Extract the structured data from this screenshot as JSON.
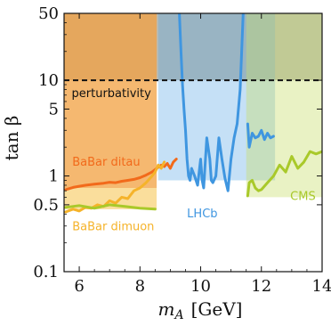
{
  "chart_data": {
    "type": "line",
    "xlabel_symbol": "m",
    "xlabel_sub": "A",
    "xlabel_unit": "[GeV]",
    "ylabel_text": "tan β",
    "xlim": [
      5.5,
      14
    ],
    "ylim": [
      0.1,
      50
    ],
    "y_scale": "log",
    "x_ticks": [
      6,
      8,
      10,
      12,
      14
    ],
    "x_tick_labels": [
      "6",
      "8",
      "10",
      "12",
      "14"
    ],
    "y_ticks": [
      0.1,
      0.5,
      1,
      5,
      10,
      50
    ],
    "y_tick_labels": [
      "0.1",
      "0.5",
      "1",
      "5",
      "10",
      "50"
    ],
    "grid": false,
    "perturbativity": {
      "y": 10,
      "label": "perturbativity",
      "color": "#111111"
    },
    "regions": [
      {
        "name": "perturbativity-region",
        "color": "#6b6b52",
        "opacity": 0.45,
        "x": [
          5.5,
          14
        ],
        "lower": [
          10,
          10
        ]
      },
      {
        "name": "babar-dimuon-region",
        "color": "#f5c24a",
        "opacity": 0.55,
        "x": [
          5.5,
          8.55
        ],
        "lower": [
          0.45,
          0.45
        ]
      },
      {
        "name": "babar-ditau-region",
        "color": "#f08a3c",
        "opacity": 0.45,
        "x": [
          5.5,
          8.55
        ],
        "lower": [
          0.75,
          0.75
        ]
      },
      {
        "name": "lhcb-region",
        "color": "#5aa6e6",
        "opacity": 0.35,
        "x": [
          8.6,
          12.45
        ],
        "lower": [
          0.9,
          0.9
        ]
      },
      {
        "name": "cms-region",
        "color": "#c8df6b",
        "opacity": 0.4,
        "x": [
          11.5,
          14
        ],
        "lower": [
          0.6,
          0.6
        ]
      }
    ],
    "series": [
      {
        "name": "BaBar ditau",
        "color": "#f26a1b",
        "label_pos": [
          5.8,
          1.3
        ],
        "x": [
          5.55,
          5.8,
          6.0,
          6.2,
          6.5,
          6.8,
          7.0,
          7.2,
          7.4,
          7.6,
          7.8,
          8.0,
          8.2,
          8.4,
          8.55,
          8.7,
          8.8,
          8.9,
          9.0,
          9.1,
          9.2
        ],
        "y": [
          0.72,
          0.76,
          0.78,
          0.8,
          0.82,
          0.84,
          0.86,
          0.85,
          0.88,
          0.9,
          0.92,
          0.96,
          1.02,
          1.1,
          1.2,
          1.3,
          1.25,
          1.35,
          1.2,
          1.4,
          1.5
        ]
      },
      {
        "name": "BaBar dimuon",
        "color": "#f5b32a",
        "label_pos": [
          5.8,
          0.27
        ],
        "x": [
          5.55,
          5.8,
          6.0,
          6.2,
          6.4,
          6.6,
          6.8,
          7.0,
          7.2,
          7.4,
          7.6,
          7.8,
          8.0,
          8.2,
          8.4,
          8.5,
          8.6,
          8.7,
          8.8
        ],
        "y": [
          0.42,
          0.45,
          0.43,
          0.47,
          0.46,
          0.5,
          0.48,
          0.55,
          0.52,
          0.6,
          0.58,
          0.7,
          0.75,
          0.85,
          1.0,
          1.1,
          1.3,
          1.2,
          1.4
        ]
      },
      {
        "name": "LHCb",
        "color": "#3f96e0",
        "label_pos": [
          9.55,
          0.38
        ],
        "x": [
          9.3,
          9.35,
          9.4,
          9.45,
          9.5,
          9.55,
          9.6,
          9.65,
          9.7,
          9.8,
          9.9,
          10.0,
          10.05,
          10.1,
          10.2,
          10.3,
          10.35,
          10.4,
          10.5,
          10.6,
          10.7,
          10.8,
          10.9,
          11.0,
          11.1,
          11.2,
          11.3,
          11.35,
          11.4
        ],
        "y": [
          50,
          20,
          9,
          5,
          3,
          1.5,
          1.0,
          0.9,
          1.2,
          1.0,
          0.8,
          1.5,
          0.9,
          0.75,
          2.5,
          1.5,
          0.9,
          0.85,
          1.0,
          2.5,
          1.5,
          0.95,
          0.7,
          1.5,
          2.5,
          3.5,
          8,
          20,
          50
        ]
      },
      {
        "name": "LHCb-high",
        "color": "#3f96e0",
        "x": [
          11.55,
          11.6,
          11.7,
          11.8,
          11.9,
          12.0,
          12.1,
          12.2,
          12.3,
          12.4
        ],
        "y": [
          3.5,
          2.0,
          2.8,
          2.5,
          2.6,
          3.0,
          2.4,
          2.8,
          2.5,
          2.6
        ]
      },
      {
        "name": "CMS",
        "color": "#a9c92a",
        "label_pos": [
          12.6,
          0.5
        ],
        "x": [
          11.55,
          11.6,
          11.7,
          11.8,
          11.9,
          12.0,
          12.2,
          12.4,
          12.6,
          12.8,
          13.0,
          13.2,
          13.4,
          13.6,
          13.8,
          14.0
        ],
        "y": [
          0.62,
          0.85,
          0.9,
          0.75,
          0.7,
          0.72,
          0.85,
          1.0,
          1.3,
          1.1,
          1.6,
          1.2,
          1.4,
          1.8,
          1.7,
          1.8
        ]
      },
      {
        "name": "BaBar-dimuon-low",
        "color": "#a9c92a",
        "x": [
          5.55,
          6.0,
          6.5,
          7.0,
          7.5,
          8.0,
          8.5
        ],
        "y": [
          0.47,
          0.49,
          0.46,
          0.5,
          0.48,
          0.46,
          0.45
        ]
      }
    ],
    "labels": [
      {
        "text": "BaBar ditau",
        "color": "#f26a1b"
      },
      {
        "text": "BaBar dimuon",
        "color": "#f5b32a"
      },
      {
        "text": "LHCb",
        "color": "#3f96e0"
      },
      {
        "text": "CMS",
        "color": "#a9c92a"
      }
    ]
  }
}
